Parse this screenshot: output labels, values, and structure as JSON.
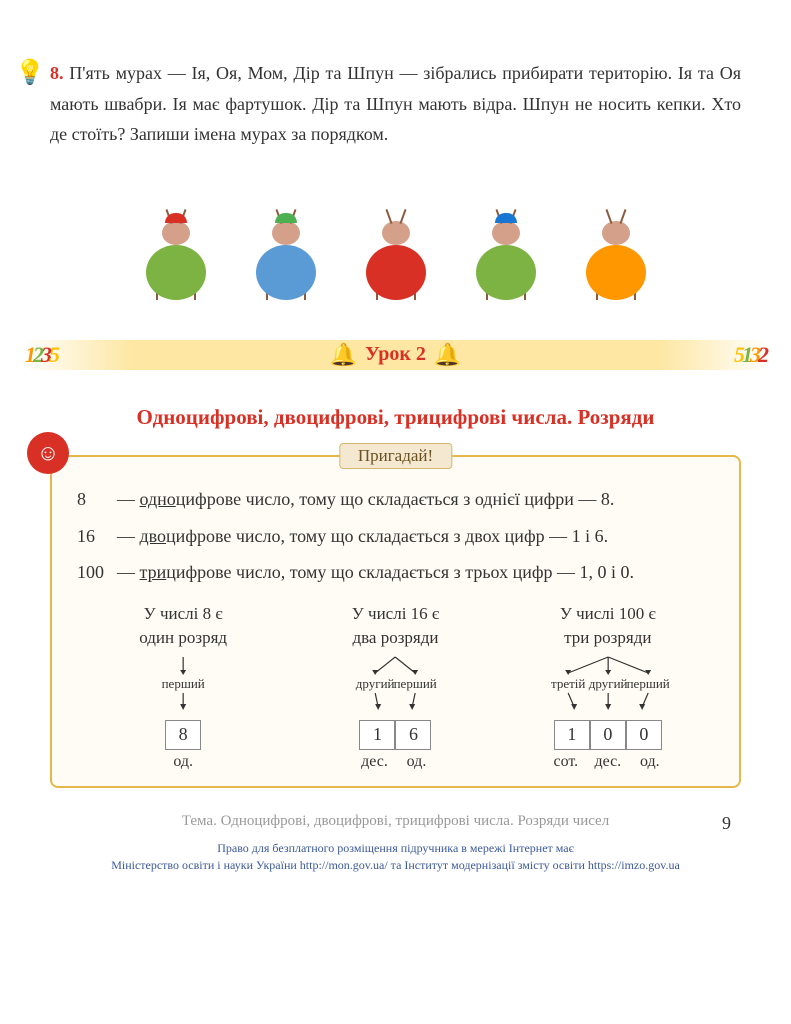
{
  "exercise": {
    "number": "8.",
    "text": "П'ять мурах — Ія, Оя, Мом, Дір та Шпун — зібрались прибирати територію. Ія та Оя мають швабри. Ія має фартушок. Дір та Шпун мають відра. Шпун не носить кепки. Хто де стоїть? Запиши імена мурах за порядком."
  },
  "ants": [
    {
      "body_color": "#7cb342",
      "hat_color": "#d93025",
      "has_hat": true
    },
    {
      "body_color": "#5b9bd5",
      "hat_color": "#4caf50",
      "has_hat": true
    },
    {
      "body_color": "#d93025",
      "hat_color": "",
      "has_hat": false,
      "apron": "#8bc34a"
    },
    {
      "body_color": "#7cb342",
      "hat_color": "#1976d2",
      "has_hat": true
    },
    {
      "body_color": "#ff9800",
      "hat_color": "",
      "has_hat": false
    }
  ],
  "lesson": {
    "label": "Урок 2",
    "left_nums": [
      {
        "char": "1",
        "color": "#ff9800"
      },
      {
        "char": "2",
        "color": "#7cb342"
      },
      {
        "char": "3",
        "color": "#d93025"
      },
      {
        "char": "5",
        "color": "#ffc107"
      }
    ],
    "right_nums": [
      {
        "char": "5",
        "color": "#ffc107"
      },
      {
        "char": "1",
        "color": "#7cb342"
      },
      {
        "char": "3",
        "color": "#ff9800"
      },
      {
        "char": "2",
        "color": "#d93025"
      }
    ]
  },
  "section_title": "Одноцифрові, двоцифрові, трицифрові числа. Розряди",
  "recall": {
    "badge": "Пригадай!",
    "defs": [
      {
        "num": "8",
        "prefix": "одно",
        "rest": "цифрове число, тому що складається з однієї цифри — 8."
      },
      {
        "num": "16",
        "prefix": "дво",
        "rest": "цифрове число, тому що складається з двох цифр — 1 і 6."
      },
      {
        "num": "100",
        "prefix": "три",
        "rest": "цифрове число, тому що складається з трьох цифр — 1, 0 і 0."
      }
    ],
    "digit_cols": [
      {
        "head1": "У числі 8 є",
        "head2": "один розряд",
        "labels": [
          "перший"
        ],
        "digits": [
          "8"
        ],
        "units": [
          "од."
        ]
      },
      {
        "head1": "У числі 16 є",
        "head2": "два розряди",
        "labels": [
          "другий",
          "перший"
        ],
        "digits": [
          "1",
          "6"
        ],
        "units": [
          "дес.",
          "од."
        ]
      },
      {
        "head1": "У числі 100 є",
        "head2": "три розряди",
        "labels": [
          "третій",
          "другий",
          "перший"
        ],
        "digits": [
          "1",
          "0",
          "0"
        ],
        "units": [
          "сот.",
          "дес.",
          "од."
        ]
      }
    ]
  },
  "footer": {
    "theme_label": "Тема.",
    "theme_text": "Одноцифрові, двоцифрові, трицифрові числа. Розряди чисел",
    "page_num": "9",
    "rights1": "Право для безплатного розміщення підручника в мережі Інтернет має",
    "rights2": "Міністерство освіти і науки України http://mon.gov.ua/ та Інститут модернізації змісту освіти https://imzo.gov.ua"
  },
  "colors": {
    "accent_red": "#d93025",
    "box_border": "#e6b84a",
    "box_bg": "#fefcf5",
    "banner_bg": "#fde7a3"
  }
}
